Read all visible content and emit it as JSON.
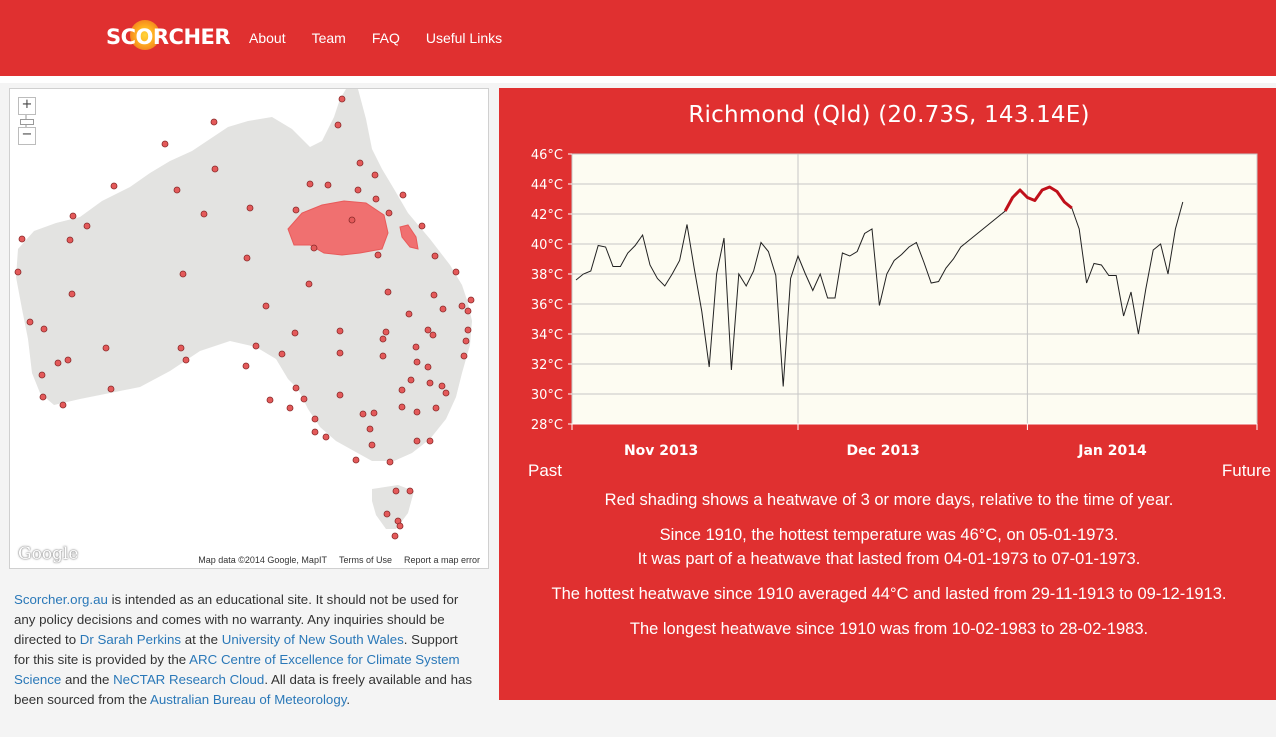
{
  "header": {
    "logo": "SCORCHER",
    "nav": [
      "About",
      "Team",
      "FAQ",
      "Useful Links"
    ],
    "background_color": "#e03030"
  },
  "map": {
    "zoom_in": "+",
    "zoom_out": "−",
    "google_logo": "Google",
    "attribution": "Map data ©2014 Google, MapIT",
    "terms": "Terms of Use",
    "report": "Report a map error"
  },
  "about": {
    "t1": "Scorcher.org.au",
    "t2": " is intended as an educational site. It should not be used for any policy decisions and comes with no warranty. Any inquiries should be directed to ",
    "t3": "Dr Sarah Perkins",
    "t4": " at the ",
    "t5": "University of New South Wales",
    "t6": ". Support for this site is provided by the ",
    "t7": "ARC Centre of Excellence for Climate System Science",
    "t8": " and the ",
    "t9": "NeCTAR Research Cloud",
    "t10": ". All data is freely available and has been sourced from the ",
    "t11": "Australian Bureau of Meteorology",
    "t12": "."
  },
  "station": {
    "title": "Richmond (Qld) (20.73S, 143.14E)",
    "past": "Past",
    "future": "Future",
    "info1": "Red shading shows a heatwave of 3 or more days, relative to the time of year.",
    "info2a": "Since 1910, the hottest temperature was 46°C, on 05-01-1973.",
    "info2b": "It was part of a heatwave that lasted from 04-01-1973 to 07-01-1973.",
    "info3": "The hottest heatwave since 1910 averaged 44°C and lasted from 29-11-1913 to 09-12-1913.",
    "info4": "The longest heatwave since 1910 was from 10-02-1983 to 28-02-1983."
  },
  "chart_data": {
    "type": "line",
    "ylim": [
      28,
      46
    ],
    "y_ticks": [
      28,
      30,
      32,
      34,
      36,
      38,
      40,
      42,
      44,
      46
    ],
    "y_tick_labels": [
      "28°C",
      "30°C",
      "32°C",
      "34°C",
      "36°C",
      "38°C",
      "40°C",
      "42°C",
      "44°C",
      "46°C"
    ],
    "x_labels": [
      "Nov 2013",
      "Dec 2013",
      "Jan 2014"
    ],
    "x_label_index": [
      11.5,
      41.5,
      72.5
    ],
    "month_boundary_index": [
      30,
      61
    ],
    "series": [
      {
        "values": [
          37.6,
          38.0,
          38.2,
          39.9,
          39.8,
          38.5,
          38.5,
          39.4,
          39.9,
          40.6,
          38.6,
          37.7,
          37.2,
          38.0,
          38.9,
          41.3,
          38.3,
          35.5,
          31.8,
          38.0,
          40.4,
          31.6,
          38.0,
          37.2,
          38.2,
          40.1,
          39.5,
          37.9,
          30.5,
          37.7,
          39.2,
          38.0,
          36.9,
          38.0,
          36.4,
          36.4,
          39.4,
          39.2,
          39.5,
          40.7,
          41.0,
          35.9,
          38.0,
          38.9,
          39.3,
          39.8,
          40.1,
          38.8,
          37.4,
          37.5,
          38.4,
          39.0,
          39.8,
          40.2,
          40.6,
          41.0,
          41.4,
          41.8,
          42.2,
          43.1,
          43.6,
          43.1,
          42.9,
          43.6,
          43.8,
          43.5,
          42.8,
          42.4,
          41.0,
          37.4,
          38.7,
          38.6,
          37.9,
          37.9,
          35.2,
          36.8,
          34.0,
          37.0,
          39.6,
          40.0,
          38.0,
          41.0,
          42.8
        ]
      }
    ],
    "heatwave_days": [
      [
        58,
        67
      ]
    ],
    "line_color": "#222222",
    "heatwave_color": "#c0101a"
  }
}
